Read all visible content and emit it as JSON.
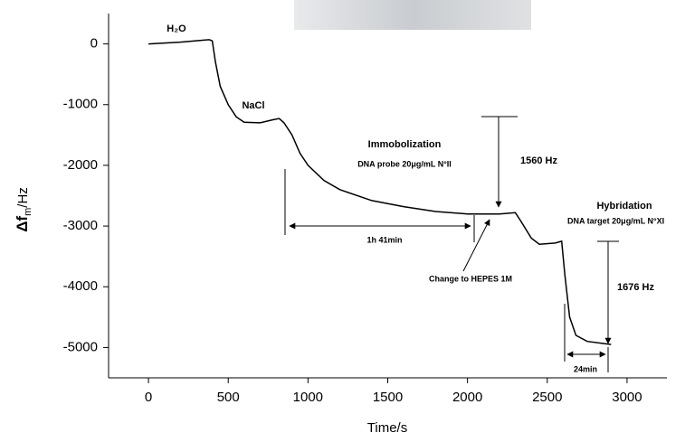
{
  "chart_data": {
    "type": "line",
    "x_label": "Time/s",
    "y_label": {
      "main": "Δf",
      "sub": "m",
      "unit": "/Hz"
    },
    "x": [
      0,
      200,
      380,
      400,
      420,
      450,
      500,
      550,
      600,
      700,
      780,
      820,
      850,
      900,
      950,
      1000,
      1100,
      1200,
      1400,
      1600,
      1800,
      2000,
      2200,
      2300,
      2330,
      2400,
      2450,
      2550,
      2590,
      2610,
      2640,
      2680,
      2750,
      2900
    ],
    "values": [
      0,
      30,
      70,
      50,
      -300,
      -700,
      -1000,
      -1200,
      -1290,
      -1300,
      -1250,
      -1230,
      -1300,
      -1500,
      -1800,
      -2000,
      -2250,
      -2400,
      -2580,
      -2680,
      -2760,
      -2800,
      -2800,
      -2780,
      -2900,
      -3200,
      -3300,
      -3280,
      -3250,
      -3800,
      -4500,
      -4800,
      -4900,
      -4950
    ],
    "color": "#000000",
    "xlim": [
      -250,
      3250
    ],
    "xticks": [
      0,
      500,
      1000,
      1500,
      2000,
      2500,
      3000
    ],
    "ylim": [
      -5500,
      500
    ],
    "yticks": [
      0,
      -1000,
      -2000,
      -3000,
      -4000,
      -5000
    ],
    "annotations": [
      "H₂O",
      "NaCl",
      "Immobolization",
      "DNA probe 20μg/mL N°II",
      "1560 Hz",
      "1h 41min",
      "Change to HEPES 1M",
      "Hybridation",
      "DNA target 20μg/mL N°XI",
      "1676 Hz",
      "24min"
    ]
  }
}
